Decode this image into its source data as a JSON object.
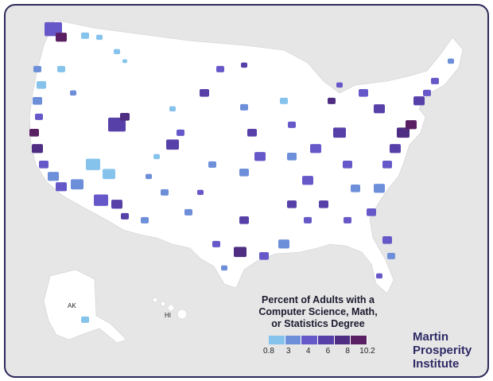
{
  "legend": {
    "title": "Percent of Adults with a\nComputer Science, Math,\nor Statistics Degree",
    "colors": [
      "#86c3ec",
      "#6d8ed9",
      "#6658c8",
      "#5740a8",
      "#4e2d82",
      "#5a1f63"
    ],
    "ticks": [
      "0.8",
      "3",
      "4",
      "6",
      "8",
      "10.2"
    ]
  },
  "logo": {
    "line1": "Martin",
    "line2": "Prosperity",
    "line3": "Institute"
  },
  "labels": {
    "alaska": "AK",
    "hawaii": "HI"
  },
  "colors": {
    "background": "#e6e6e6",
    "land": "#ffffff",
    "border": "#2c2a5a"
  }
}
